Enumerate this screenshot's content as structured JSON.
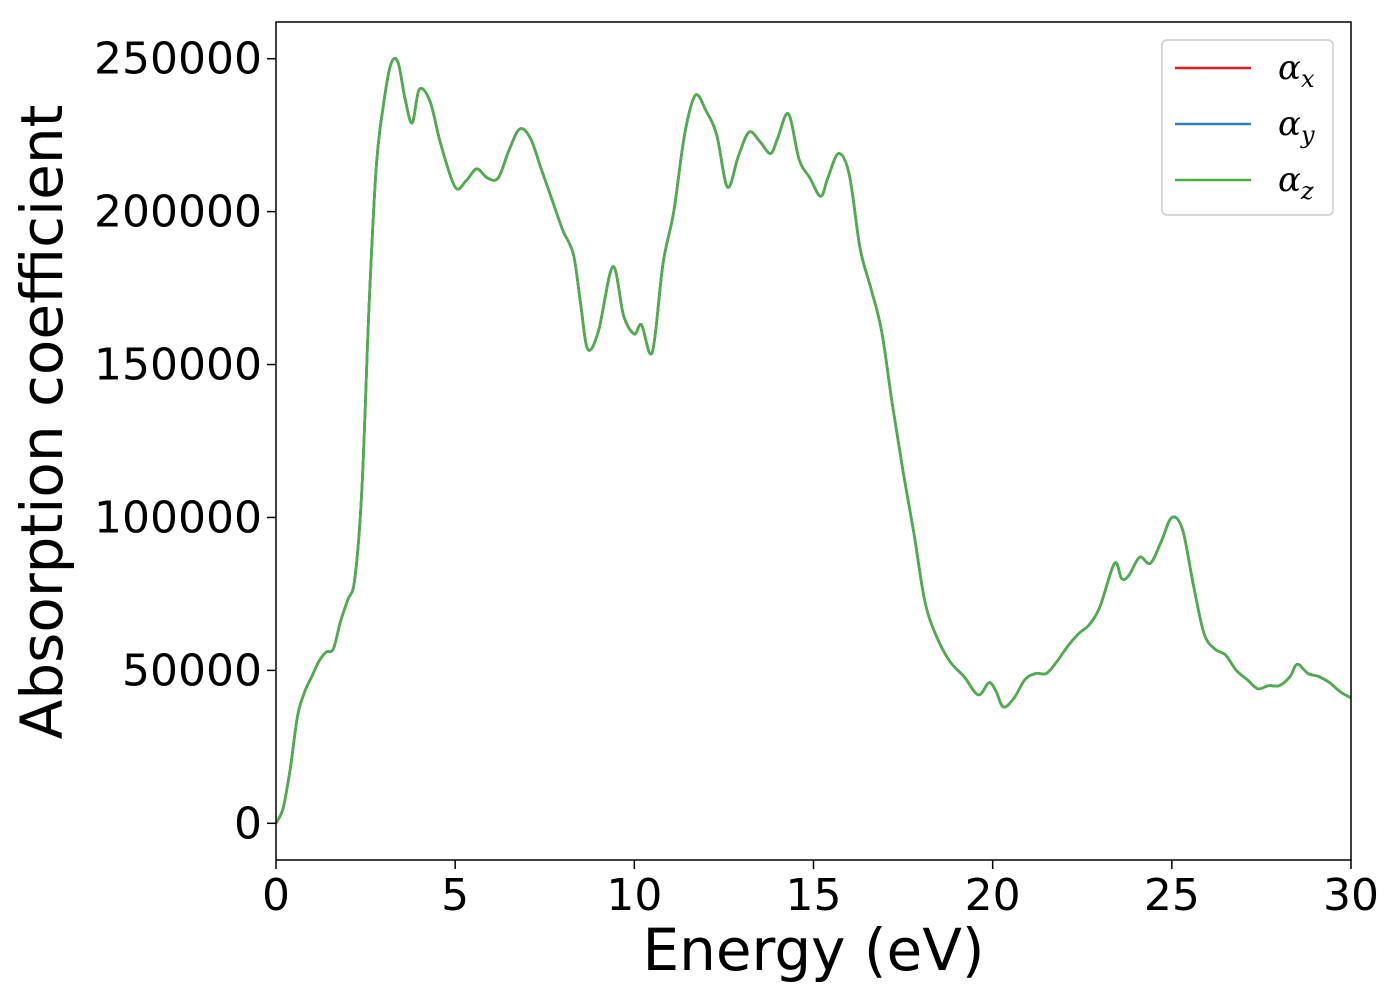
{
  "chart_data": {
    "type": "line",
    "title": "",
    "xlabel": "Energy (eV)",
    "ylabel": "Absorption coefficient",
    "xlim": [
      0,
      30
    ],
    "ylim": [
      -12000,
      262000
    ],
    "xticks": [
      0,
      5,
      10,
      15,
      20,
      25,
      30
    ],
    "xtick_labels": [
      "0",
      "5",
      "10",
      "15",
      "20",
      "25",
      "30"
    ],
    "yticks": [
      0,
      50000,
      100000,
      150000,
      200000,
      250000
    ],
    "ytick_labels": [
      "0",
      "50000",
      "100000",
      "150000",
      "200000",
      "250000"
    ],
    "grid": false,
    "legend": {
      "position": "top-right"
    },
    "x": [
      0,
      0.2,
      0.4,
      0.6,
      0.8,
      1.0,
      1.2,
      1.4,
      1.6,
      1.8,
      2.0,
      2.2,
      2.4,
      2.6,
      2.8,
      3.0,
      3.2,
      3.4,
      3.6,
      3.8,
      4.0,
      4.3,
      4.6,
      5.0,
      5.3,
      5.6,
      5.9,
      6.2,
      6.5,
      6.8,
      7.1,
      7.4,
      7.7,
      8.0,
      8.3,
      8.5,
      8.7,
      9.0,
      9.4,
      9.7,
      10.0,
      10.2,
      10.5,
      10.8,
      11.1,
      11.4,
      11.7,
      12.0,
      12.3,
      12.6,
      12.9,
      13.2,
      13.5,
      13.8,
      14.0,
      14.3,
      14.6,
      14.9,
      15.2,
      15.4,
      15.7,
      16.0,
      16.3,
      16.6,
      16.9,
      17.2,
      17.5,
      17.8,
      18.1,
      18.4,
      18.8,
      19.2,
      19.6,
      19.9,
      20.1,
      20.3,
      20.6,
      20.9,
      21.2,
      21.5,
      21.8,
      22.1,
      22.4,
      22.7,
      23.0,
      23.4,
      23.6,
      23.8,
      24.1,
      24.4,
      24.7,
      25.0,
      25.3,
      25.6,
      25.9,
      26.2,
      26.5,
      26.8,
      27.1,
      27.4,
      27.7,
      28.0,
      28.3,
      28.5,
      28.8,
      29.1,
      29.4,
      29.7,
      30.0
    ],
    "series": [
      {
        "name": "α_x",
        "color": "#e41a1c",
        "y": [
          0,
          5000,
          18000,
          35000,
          43000,
          48000,
          53000,
          56000,
          57000,
          66000,
          73000,
          80000,
          110000,
          170000,
          215000,
          235000,
          248000,
          249000,
          237000,
          229000,
          240000,
          236000,
          222000,
          208000,
          210000,
          214000,
          211000,
          211000,
          220000,
          227000,
          224000,
          214000,
          204000,
          194000,
          186000,
          170000,
          155000,
          161000,
          182000,
          166000,
          160000,
          163000,
          154000,
          183000,
          200000,
          225000,
          238000,
          233000,
          225000,
          208000,
          218000,
          226000,
          223000,
          219000,
          224000,
          232000,
          217000,
          211000,
          205000,
          211000,
          219000,
          212000,
          188000,
          175000,
          161000,
          137000,
          115000,
          95000,
          73000,
          62000,
          53000,
          48000,
          42000,
          46000,
          43000,
          38000,
          41000,
          47000,
          49000,
          49000,
          53000,
          58000,
          62000,
          65000,
          71000,
          85000,
          80000,
          81000,
          87000,
          85000,
          92000,
          100000,
          96000,
          78000,
          62000,
          57000,
          55000,
          50000,
          47000,
          44000,
          45000,
          45000,
          48000,
          52000,
          49000,
          48000,
          46000,
          43000,
          41000
        ]
      },
      {
        "name": "α_y",
        "color": "#377eb8",
        "y": [
          0,
          5000,
          18000,
          35000,
          43000,
          48000,
          53000,
          56000,
          57000,
          66000,
          73000,
          80000,
          110000,
          170000,
          215000,
          235000,
          248000,
          249000,
          237000,
          229000,
          240000,
          236000,
          222000,
          208000,
          210000,
          214000,
          211000,
          211000,
          220000,
          227000,
          224000,
          214000,
          204000,
          194000,
          186000,
          170000,
          155000,
          161000,
          182000,
          166000,
          160000,
          163000,
          154000,
          183000,
          200000,
          225000,
          238000,
          233000,
          225000,
          208000,
          218000,
          226000,
          223000,
          219000,
          224000,
          232000,
          217000,
          211000,
          205000,
          211000,
          219000,
          212000,
          188000,
          175000,
          161000,
          137000,
          115000,
          95000,
          73000,
          62000,
          53000,
          48000,
          42000,
          46000,
          43000,
          38000,
          41000,
          47000,
          49000,
          49000,
          53000,
          58000,
          62000,
          65000,
          71000,
          85000,
          80000,
          81000,
          87000,
          85000,
          92000,
          100000,
          96000,
          78000,
          62000,
          57000,
          55000,
          50000,
          47000,
          44000,
          45000,
          45000,
          48000,
          52000,
          49000,
          48000,
          46000,
          43000,
          41000
        ]
      },
      {
        "name": "α_z",
        "color": "#4daf4a",
        "y": [
          0,
          5000,
          18000,
          35000,
          43000,
          48000,
          53000,
          56000,
          57000,
          66000,
          73000,
          80000,
          110000,
          170000,
          215000,
          235000,
          248000,
          249000,
          237000,
          229000,
          240000,
          236000,
          222000,
          208000,
          210000,
          214000,
          211000,
          211000,
          220000,
          227000,
          224000,
          214000,
          204000,
          194000,
          186000,
          170000,
          155000,
          161000,
          182000,
          166000,
          160000,
          163000,
          154000,
          183000,
          200000,
          225000,
          238000,
          233000,
          225000,
          208000,
          218000,
          226000,
          223000,
          219000,
          224000,
          232000,
          217000,
          211000,
          205000,
          211000,
          219000,
          212000,
          188000,
          175000,
          161000,
          137000,
          115000,
          95000,
          73000,
          62000,
          53000,
          48000,
          42000,
          46000,
          43000,
          38000,
          41000,
          47000,
          49000,
          49000,
          53000,
          58000,
          62000,
          65000,
          71000,
          85000,
          80000,
          81000,
          87000,
          85000,
          92000,
          100000,
          96000,
          78000,
          62000,
          57000,
          55000,
          50000,
          47000,
          44000,
          45000,
          45000,
          48000,
          52000,
          49000,
          48000,
          46000,
          43000,
          41000
        ]
      }
    ],
    "legend_entries": [
      {
        "symbol": "α",
        "sub": "x"
      },
      {
        "symbol": "α",
        "sub": "y"
      },
      {
        "symbol": "α",
        "sub": "z"
      }
    ]
  }
}
